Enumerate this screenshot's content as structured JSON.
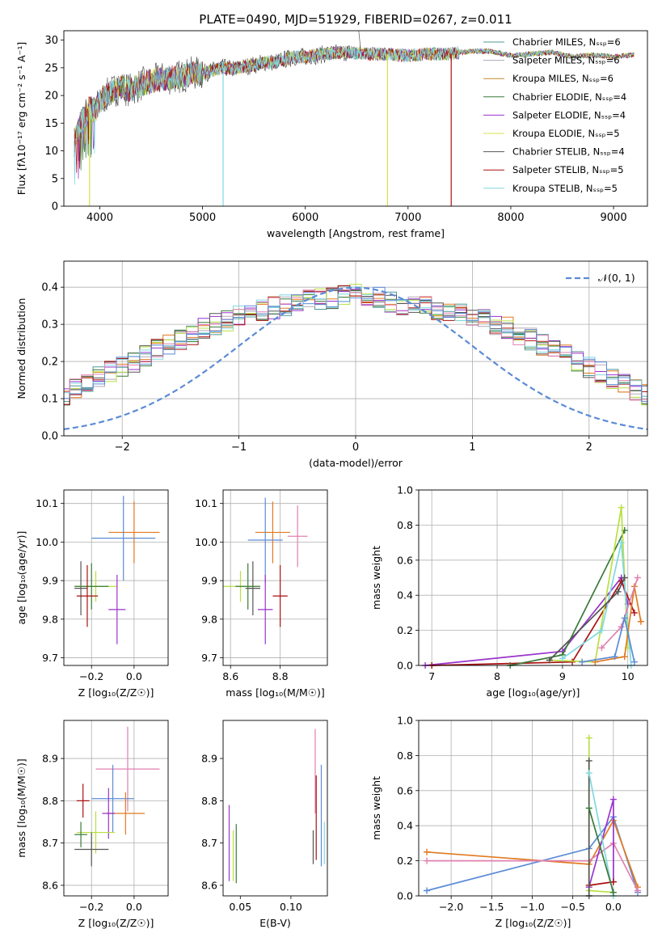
{
  "figure": {
    "title": "PLATE=0490, MJD=51929, FIBERID=0267, z=0.011"
  },
  "colors": {
    "chabrier_miles": "#4d9999",
    "salpeter_miles": "#b0a8b8",
    "kroupa_miles": "#c68a2c",
    "chabrier_elodie": "#3a7a3a",
    "salpeter_elodie": "#9933cc",
    "kroupa_elodie": "#d8e048",
    "chabrier_stelib": "#555555",
    "salpeter_stelib": "#aa1111",
    "kroupa_stelib": "#80d8e0",
    "normal_curve": "#5b8bd6",
    "hist": [
      "#4d9999",
      "#b0a8b8",
      "#e07a20",
      "#3a7a3a",
      "#9933cc",
      "#b8e040",
      "#555555",
      "#aa1111",
      "#80d8e0",
      "#e080b0",
      "#5b8bd6"
    ],
    "grid": "#b0b0b0"
  },
  "chart_data": [
    {
      "type": "line",
      "title": "PLATE=0490, MJD=51929, FIBERID=0267, z=0.011",
      "xlabel": "wavelength [Angstrom, rest frame]",
      "ylabel": "Flux [fλ10⁻¹⁷ erg cm⁻² s⁻¹ A⁻¹]",
      "xlim": [
        3650,
        9330
      ],
      "ylim": [
        0,
        31.7
      ],
      "xticks": [
        "4000",
        "5000",
        "6000",
        "7000",
        "8000",
        "9000"
      ],
      "yticks": [
        "0",
        "5",
        "10",
        "15",
        "20",
        "25",
        "30"
      ],
      "grid": false,
      "legend": "top-right",
      "series_names": [
        "Chabrier MILES, N_SSP=6",
        "Salpeter MILES, N_SSP=6",
        "Kroupa MILES, N_SSP=6",
        "Chabrier ELODIE, N_SSP=4",
        "Salpeter ELODIE, N_SSP=4",
        "Kroupa ELODIE, N_SSP=5",
        "Chabrier STELIB, N_SSP=4",
        "Salpeter STELIB, N_SSP=5",
        "Kroupa STELIB, N_SSP=5"
      ],
      "continuum_x": [
        3750,
        3800,
        3850,
        3900,
        3950,
        4000,
        4100,
        4200,
        4300,
        4400,
        4500,
        4600,
        4700,
        4800,
        4900,
        5000,
        5100,
        5200,
        5300,
        5400,
        5500,
        5600,
        5700,
        5800,
        5900,
        6000,
        6200,
        6400,
        6600,
        6800,
        7000,
        7200,
        7400,
        7600,
        7800,
        8000,
        8200,
        8400,
        8600,
        8800,
        9000,
        9200
      ],
      "continuum_y": [
        12,
        14,
        16,
        18,
        17,
        19,
        20.5,
        21.5,
        21,
        22,
        22.5,
        23,
        23.2,
        23.5,
        24,
        24,
        24.5,
        25,
        24.8,
        25.2,
        25.5,
        26,
        26,
        26.5,
        27,
        27,
        27.5,
        27.8,
        27.5,
        27.5,
        27.2,
        27.5,
        27.5,
        28,
        28,
        27.2,
        27.5,
        27.8,
        27,
        27.3,
        27,
        27.3
      ],
      "dips": [
        {
          "x": 3900,
          "y": 0,
          "series": 5
        },
        {
          "x": 5200,
          "y": 0,
          "series": 8
        },
        {
          "x": 6800,
          "y": 0,
          "series": 5
        },
        {
          "x": 7420,
          "y": 0,
          "series": 7
        }
      ]
    },
    {
      "type": "bar",
      "xlabel": "(data-model)/error",
      "ylabel": "Normed distribution",
      "xlim": [
        -2.5,
        2.5
      ],
      "ylim": [
        0,
        0.47
      ],
      "xticks": [
        "−2",
        "−1",
        "0",
        "1",
        "2"
      ],
      "yticks": [
        "0.0",
        "0.1",
        "0.2",
        "0.3",
        "0.4"
      ],
      "grid": true,
      "legend": "top-right",
      "curve_label": "𝒩(0, 1)",
      "bin_width": 0.1,
      "base_values": [
        0.03,
        0.035,
        0.04,
        0.045,
        0.05,
        0.055,
        0.065,
        0.075,
        0.085,
        0.1,
        0.11,
        0.13,
        0.145,
        0.16,
        0.175,
        0.19,
        0.2,
        0.215,
        0.23,
        0.245,
        0.26,
        0.275,
        0.29,
        0.3,
        0.31,
        0.325,
        0.33,
        0.34,
        0.345,
        0.35,
        0.36,
        0.365,
        0.37,
        0.37,
        0.38,
        0.38,
        0.375,
        0.37,
        0.36,
        0.355,
        0.35,
        0.345,
        0.34,
        0.33,
        0.325,
        0.32,
        0.31,
        0.3,
        0.29,
        0.275,
        0.26,
        0.245,
        0.23,
        0.215,
        0.2,
        0.185,
        0.17,
        0.155,
        0.14,
        0.125,
        0.11,
        0.1,
        0.09,
        0.08,
        0.07,
        0.06,
        0.05,
        0.045,
        0.04,
        0.035,
        0.03
      ]
    },
    {
      "type": "scatter",
      "xlabel": "Z [log₁₀(Z/Z☉)]",
      "ylabel": "age  [log₁₀(age/yr)]",
      "xlim": [
        -0.33,
        0.16
      ],
      "ylim": [
        9.68,
        10.135
      ],
      "xticks": [
        "−0.2",
        "0.0"
      ],
      "yticks": [
        "9.7",
        "9.8",
        "9.9",
        "10.0",
        "10.1"
      ],
      "grid": true,
      "points": [
        {
          "x": 0.0,
          "y": 10.025,
          "xe": 0.12,
          "ye": 0.08,
          "c": 2
        },
        {
          "x": -0.05,
          "y": 10.01,
          "xe": 0.15,
          "ye": 0.11,
          "c": 10
        },
        {
          "x": -0.25,
          "y": 9.88,
          "xe": 0.03,
          "ye": 0.07,
          "c": 6
        },
        {
          "x": -0.18,
          "y": 9.885,
          "xe": 0.1,
          "ye": 0.04,
          "c": 5
        },
        {
          "x": -0.2,
          "y": 9.885,
          "xe": 0.08,
          "ye": 0.06,
          "c": 3
        },
        {
          "x": -0.22,
          "y": 9.86,
          "xe": 0.05,
          "ye": 0.08,
          "c": 7
        },
        {
          "x": -0.08,
          "y": 9.825,
          "xe": 0.04,
          "ye": 0.09,
          "c": 4
        }
      ]
    },
    {
      "type": "scatter",
      "xlabel": "mass [log₁₀(M/M☉)]",
      "ylabel": "",
      "xlim": [
        8.57,
        8.99
      ],
      "ylim": [
        9.68,
        10.135
      ],
      "xticks": [
        "8.6",
        "8.8"
      ],
      "yticks": [
        "9.7",
        "9.8",
        "9.9",
        "10.0",
        "10.1"
      ],
      "grid": true,
      "points": [
        {
          "x": 8.77,
          "y": 10.025,
          "xe": 0.07,
          "ye": 0.08,
          "c": 2
        },
        {
          "x": 8.74,
          "y": 10.005,
          "xe": 0.07,
          "ye": 0.11,
          "c": 10
        },
        {
          "x": 8.87,
          "y": 10.015,
          "xe": 0.04,
          "ye": 0.08,
          "c": 9
        },
        {
          "x": 8.69,
          "y": 9.88,
          "xe": 0.03,
          "ye": 0.07,
          "c": 6
        },
        {
          "x": 8.64,
          "y": 9.885,
          "xe": 0.07,
          "ye": 0.04,
          "c": 5
        },
        {
          "x": 8.67,
          "y": 9.885,
          "xe": 0.05,
          "ye": 0.06,
          "c": 3
        },
        {
          "x": 8.8,
          "y": 9.86,
          "xe": 0.03,
          "ye": 0.08,
          "c": 7
        },
        {
          "x": 8.74,
          "y": 9.825,
          "xe": 0.03,
          "ye": 0.09,
          "c": 4
        }
      ]
    },
    {
      "type": "line",
      "xlabel": "age  [log₁₀(age/yr)]",
      "ylabel": "mass weight",
      "xlim": [
        6.8,
        10.3
      ],
      "ylim": [
        0,
        1.0
      ],
      "xticks": [
        "7",
        "8",
        "9",
        "10"
      ],
      "yticks": [
        "0.0",
        "0.2",
        "0.4",
        "0.6",
        "0.8",
        "1.0"
      ],
      "grid": true,
      "series": [
        {
          "c": 4,
          "x": [
            6.9,
            9.0,
            9.9,
            10.0
          ],
          "y": [
            0.0,
            0.08,
            0.5,
            0.35
          ]
        },
        {
          "c": 7,
          "x": [
            7.0,
            9.15,
            9.9,
            10.1
          ],
          "y": [
            0.0,
            0.02,
            0.48,
            0.3
          ]
        },
        {
          "c": 3,
          "x": [
            8.2,
            9.0,
            9.95
          ],
          "y": [
            0.0,
            0.06,
            0.77
          ]
        },
        {
          "c": 5,
          "x": [
            8.8,
            9.5,
            9.9,
            10.0
          ],
          "y": [
            0.03,
            0.02,
            0.9,
            0.1
          ]
        },
        {
          "c": 8,
          "x": [
            9.0,
            9.6,
            9.9,
            10.05
          ],
          "y": [
            0.04,
            0.2,
            0.7,
            0.0
          ]
        },
        {
          "c": 2,
          "x": [
            9.5,
            9.95,
            10.1,
            10.2
          ],
          "y": [
            0.02,
            0.05,
            0.45,
            0.25
          ]
        },
        {
          "c": 9,
          "x": [
            9.6,
            9.9,
            10.15
          ],
          "y": [
            0.1,
            0.22,
            0.5
          ]
        },
        {
          "c": 10,
          "x": [
            9.3,
            9.8,
            9.95,
            10.1
          ],
          "y": [
            0.02,
            0.05,
            0.27,
            0.02
          ]
        },
        {
          "c": 6,
          "x": [
            8.8,
            9.85,
            9.95
          ],
          "y": [
            0.03,
            0.42,
            0.5
          ]
        }
      ]
    },
    {
      "type": "scatter",
      "xlabel": "Z [log₁₀(Z/Z☉)]",
      "ylabel": "mass [log₁₀(M/M☉)]",
      "xlim": [
        -0.33,
        0.16
      ],
      "ylim": [
        8.575,
        8.99
      ],
      "xticks": [
        "−0.2",
        "0.0"
      ],
      "yticks": [
        "8.6",
        "8.7",
        "8.8",
        "8.9"
      ],
      "grid": true,
      "points": [
        {
          "x": -0.03,
          "y": 8.875,
          "xe": 0.15,
          "ye": 0.1,
          "c": 9
        },
        {
          "x": -0.1,
          "y": 8.805,
          "xe": 0.1,
          "ye": 0.08,
          "c": 10
        },
        {
          "x": -0.24,
          "y": 8.8,
          "xe": 0.03,
          "ye": 0.04,
          "c": 7
        },
        {
          "x": -0.04,
          "y": 8.77,
          "xe": 0.09,
          "ye": 0.05,
          "c": 2
        },
        {
          "x": -0.12,
          "y": 8.77,
          "xe": 0.03,
          "ye": 0.06,
          "c": 4
        },
        {
          "x": -0.18,
          "y": 8.725,
          "xe": 0.09,
          "ye": 0.05,
          "c": 5
        },
        {
          "x": -0.25,
          "y": 8.72,
          "xe": 0.03,
          "ye": 0.03,
          "c": 3
        },
        {
          "x": -0.2,
          "y": 8.685,
          "xe": 0.08,
          "ye": 0.04,
          "c": 6
        }
      ]
    },
    {
      "type": "scatter",
      "xlabel": "E(B-V)",
      "ylabel": "",
      "xlim": [
        0.033,
        0.136
      ],
      "ylim": [
        8.575,
        8.99
      ],
      "xticks": [
        "0.05",
        "0.10"
      ],
      "yticks": [
        "8.6",
        "8.7",
        "8.8",
        "8.9"
      ],
      "grid": false,
      "points": [
        {
          "x": 0.039,
          "y": 8.7,
          "ye": 0.09,
          "c": 4
        },
        {
          "x": 0.043,
          "y": 8.67,
          "ye": 0.06,
          "c": 5
        },
        {
          "x": 0.046,
          "y": 8.675,
          "ye": 0.07,
          "c": 3
        },
        {
          "x": 0.122,
          "y": 8.69,
          "ye": 0.04,
          "c": 6
        },
        {
          "x": 0.124,
          "y": 8.87,
          "ye": 0.1,
          "c": 9
        },
        {
          "x": 0.125,
          "y": 8.76,
          "ye": 0.1,
          "c": 7
        },
        {
          "x": 0.13,
          "y": 8.765,
          "ye": 0.12,
          "c": 10
        },
        {
          "x": 0.133,
          "y": 8.7,
          "ye": 0.05,
          "c": 8
        }
      ]
    },
    {
      "type": "line",
      "xlabel": "Z [log₁₀(Z/Z☉)]",
      "ylabel": "mass weight",
      "xlim": [
        -2.4,
        0.42
      ],
      "ylim": [
        0,
        1.0
      ],
      "xticks": [
        "−2.0",
        "−1.5",
        "−1.0",
        "−0.5",
        "0.0"
      ],
      "yticks": [
        "0.0",
        "0.2",
        "0.4",
        "0.6",
        "0.8",
        "1.0"
      ],
      "grid": true,
      "series": [
        {
          "c": 10,
          "x": [
            -2.3,
            -0.3,
            0.0,
            0.3
          ],
          "y": [
            0.03,
            0.27,
            0.45,
            0.02
          ]
        },
        {
          "c": 2,
          "x": [
            -2.3,
            -0.3,
            0.0,
            0.3
          ],
          "y": [
            0.25,
            0.18,
            0.43,
            0.05
          ]
        },
        {
          "c": 9,
          "x": [
            -2.3,
            -0.3,
            0.0,
            0.3
          ],
          "y": [
            0.2,
            0.2,
            0.3,
            0.03
          ]
        },
        {
          "c": 4,
          "x": [
            -0.3,
            0.0,
            0.0
          ],
          "y": [
            0.05,
            0.55,
            0.08
          ]
        },
        {
          "c": 7,
          "x": [
            -0.3,
            0.0
          ],
          "y": [
            0.06,
            0.08
          ]
        },
        {
          "c": 5,
          "x": [
            -0.3,
            -0.3,
            0.0
          ],
          "y": [
            0.9,
            0.03,
            0.02
          ]
        },
        {
          "c": 6,
          "x": [
            -0.3,
            -0.3
          ],
          "y": [
            0.77,
            0.0
          ]
        },
        {
          "c": 8,
          "x": [
            -0.3,
            0.0
          ],
          "y": [
            0.7,
            0.0
          ]
        },
        {
          "c": 3,
          "x": [
            -0.3,
            0.0
          ],
          "y": [
            0.5,
            0.02
          ]
        }
      ]
    }
  ]
}
